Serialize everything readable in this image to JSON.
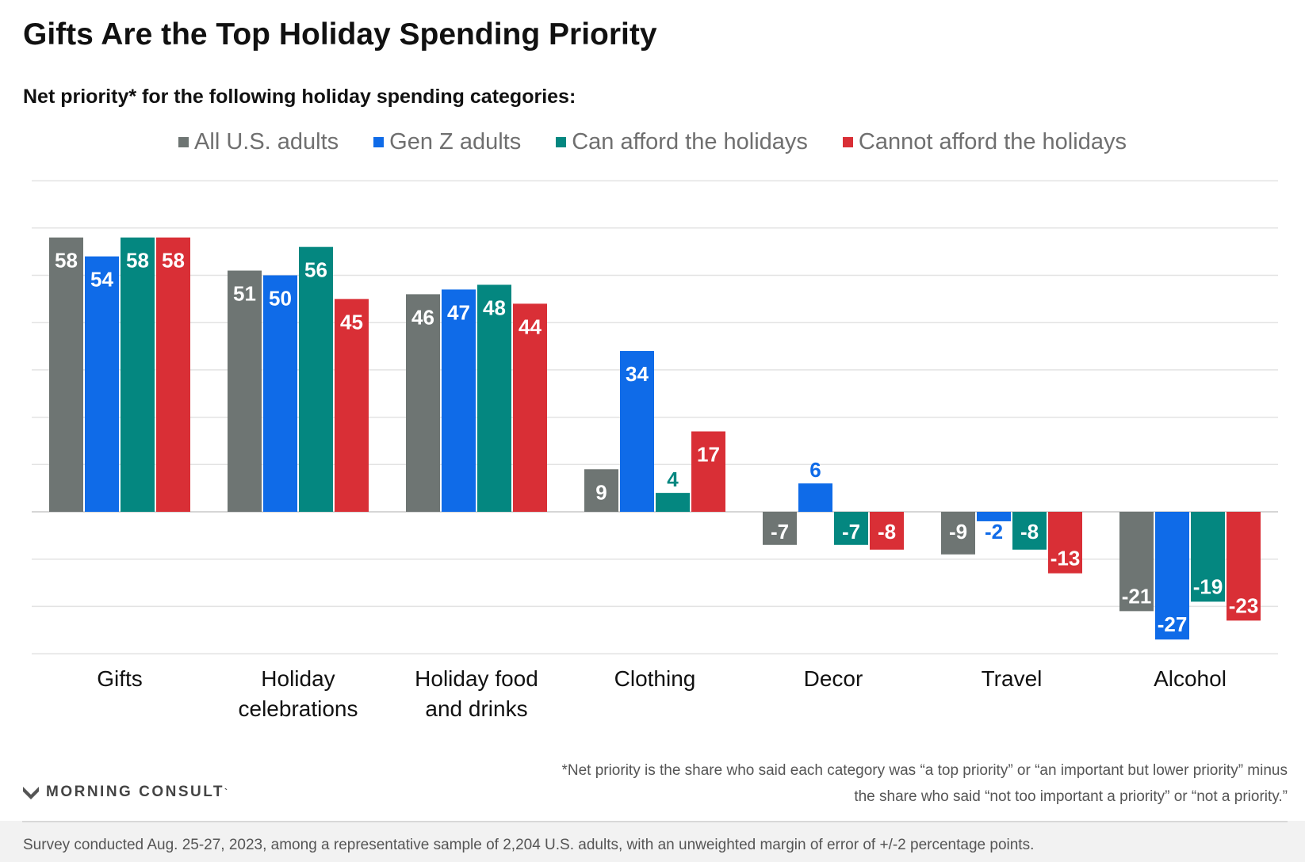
{
  "title": "Gifts Are the Top Holiday Spending Priority",
  "subtitle": "Net priority* for the following holiday spending categories:",
  "legend": [
    {
      "label": "All U.S. adults",
      "color": "#6e7573"
    },
    {
      "label": "Gen Z adults",
      "color": "#0f6be8"
    },
    {
      "label": "Can afford the holidays",
      "color": "#048780"
    },
    {
      "label": "Cannot afford the holidays",
      "color": "#d92f36"
    }
  ],
  "chart_data": {
    "type": "bar",
    "title": "Gifts Are the Top Holiday Spending Priority",
    "subtitle": "Net priority* for the following holiday spending categories:",
    "xlabel": "",
    "ylabel": "",
    "ylim": [
      -30,
      70
    ],
    "grid": true,
    "legend_position": "top-center",
    "categories": [
      [
        "Gifts"
      ],
      [
        "Holiday",
        "celebrations"
      ],
      [
        "Holiday food",
        "and drinks"
      ],
      [
        "Clothing"
      ],
      [
        "Decor"
      ],
      [
        "Travel"
      ],
      [
        "Alcohol"
      ]
    ],
    "series": [
      {
        "name": "All U.S. adults",
        "color": "#6e7573",
        "values": [
          58,
          51,
          46,
          9,
          -7,
          -9,
          -21
        ]
      },
      {
        "name": "Gen Z adults",
        "color": "#0f6be8",
        "values": [
          54,
          50,
          47,
          34,
          6,
          -2,
          -27
        ]
      },
      {
        "name": "Can afford the holidays",
        "color": "#048780",
        "values": [
          58,
          56,
          48,
          4,
          -7,
          -8,
          -19
        ]
      },
      {
        "name": "Cannot afford the holidays",
        "color": "#d92f36",
        "values": [
          58,
          45,
          44,
          17,
          -8,
          -13,
          -23
        ]
      }
    ]
  },
  "footnote": {
    "line1": "*Net priority is the share who said each category was “a top priority” or “an important but lower priority” minus",
    "line2": "the share who said “not too important a priority” or “not a priority.”"
  },
  "brand": {
    "name": "MORNING CONSULT",
    "mark": "`",
    "icon": "morning-consult-logo-icon"
  },
  "survey_note": "Survey conducted Aug. 25-27, 2023, among a representative sample of 2,204 U.S. adults, with an unweighted margin of error of +/-2 percentage points."
}
